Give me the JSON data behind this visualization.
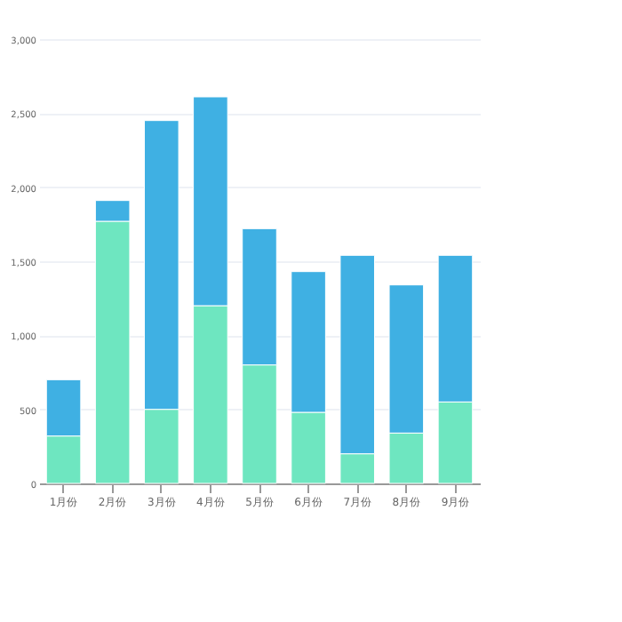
{
  "chart_data": {
    "type": "bar",
    "stacked": true,
    "categories": [
      "1月份",
      "2月份",
      "3月份",
      "4月份",
      "5月份",
      "6月份",
      "7月份",
      "8月份",
      "9月份"
    ],
    "series": [
      {
        "color": "#6ee6c0",
        "values": [
          320,
          1770,
          500,
          1200,
          800,
          480,
          200,
          340,
          550
        ]
      },
      {
        "color": "#3fb0e3",
        "values": [
          380,
          140,
          1950,
          1410,
          920,
          950,
          1340,
          1000,
          990
        ]
      }
    ],
    "ylim": [
      0,
      3000
    ],
    "yticks": [
      {
        "value": 0,
        "label": "0"
      },
      {
        "value": 500,
        "label": "500"
      },
      {
        "value": 1000,
        "label": "1,000"
      },
      {
        "value": 1500,
        "label": "1,500"
      },
      {
        "value": 2000,
        "label": "2,000"
      },
      {
        "value": 2500,
        "label": "2,500"
      },
      {
        "value": 3000,
        "label": "3,000"
      }
    ],
    "grid": "y",
    "legend": false
  }
}
